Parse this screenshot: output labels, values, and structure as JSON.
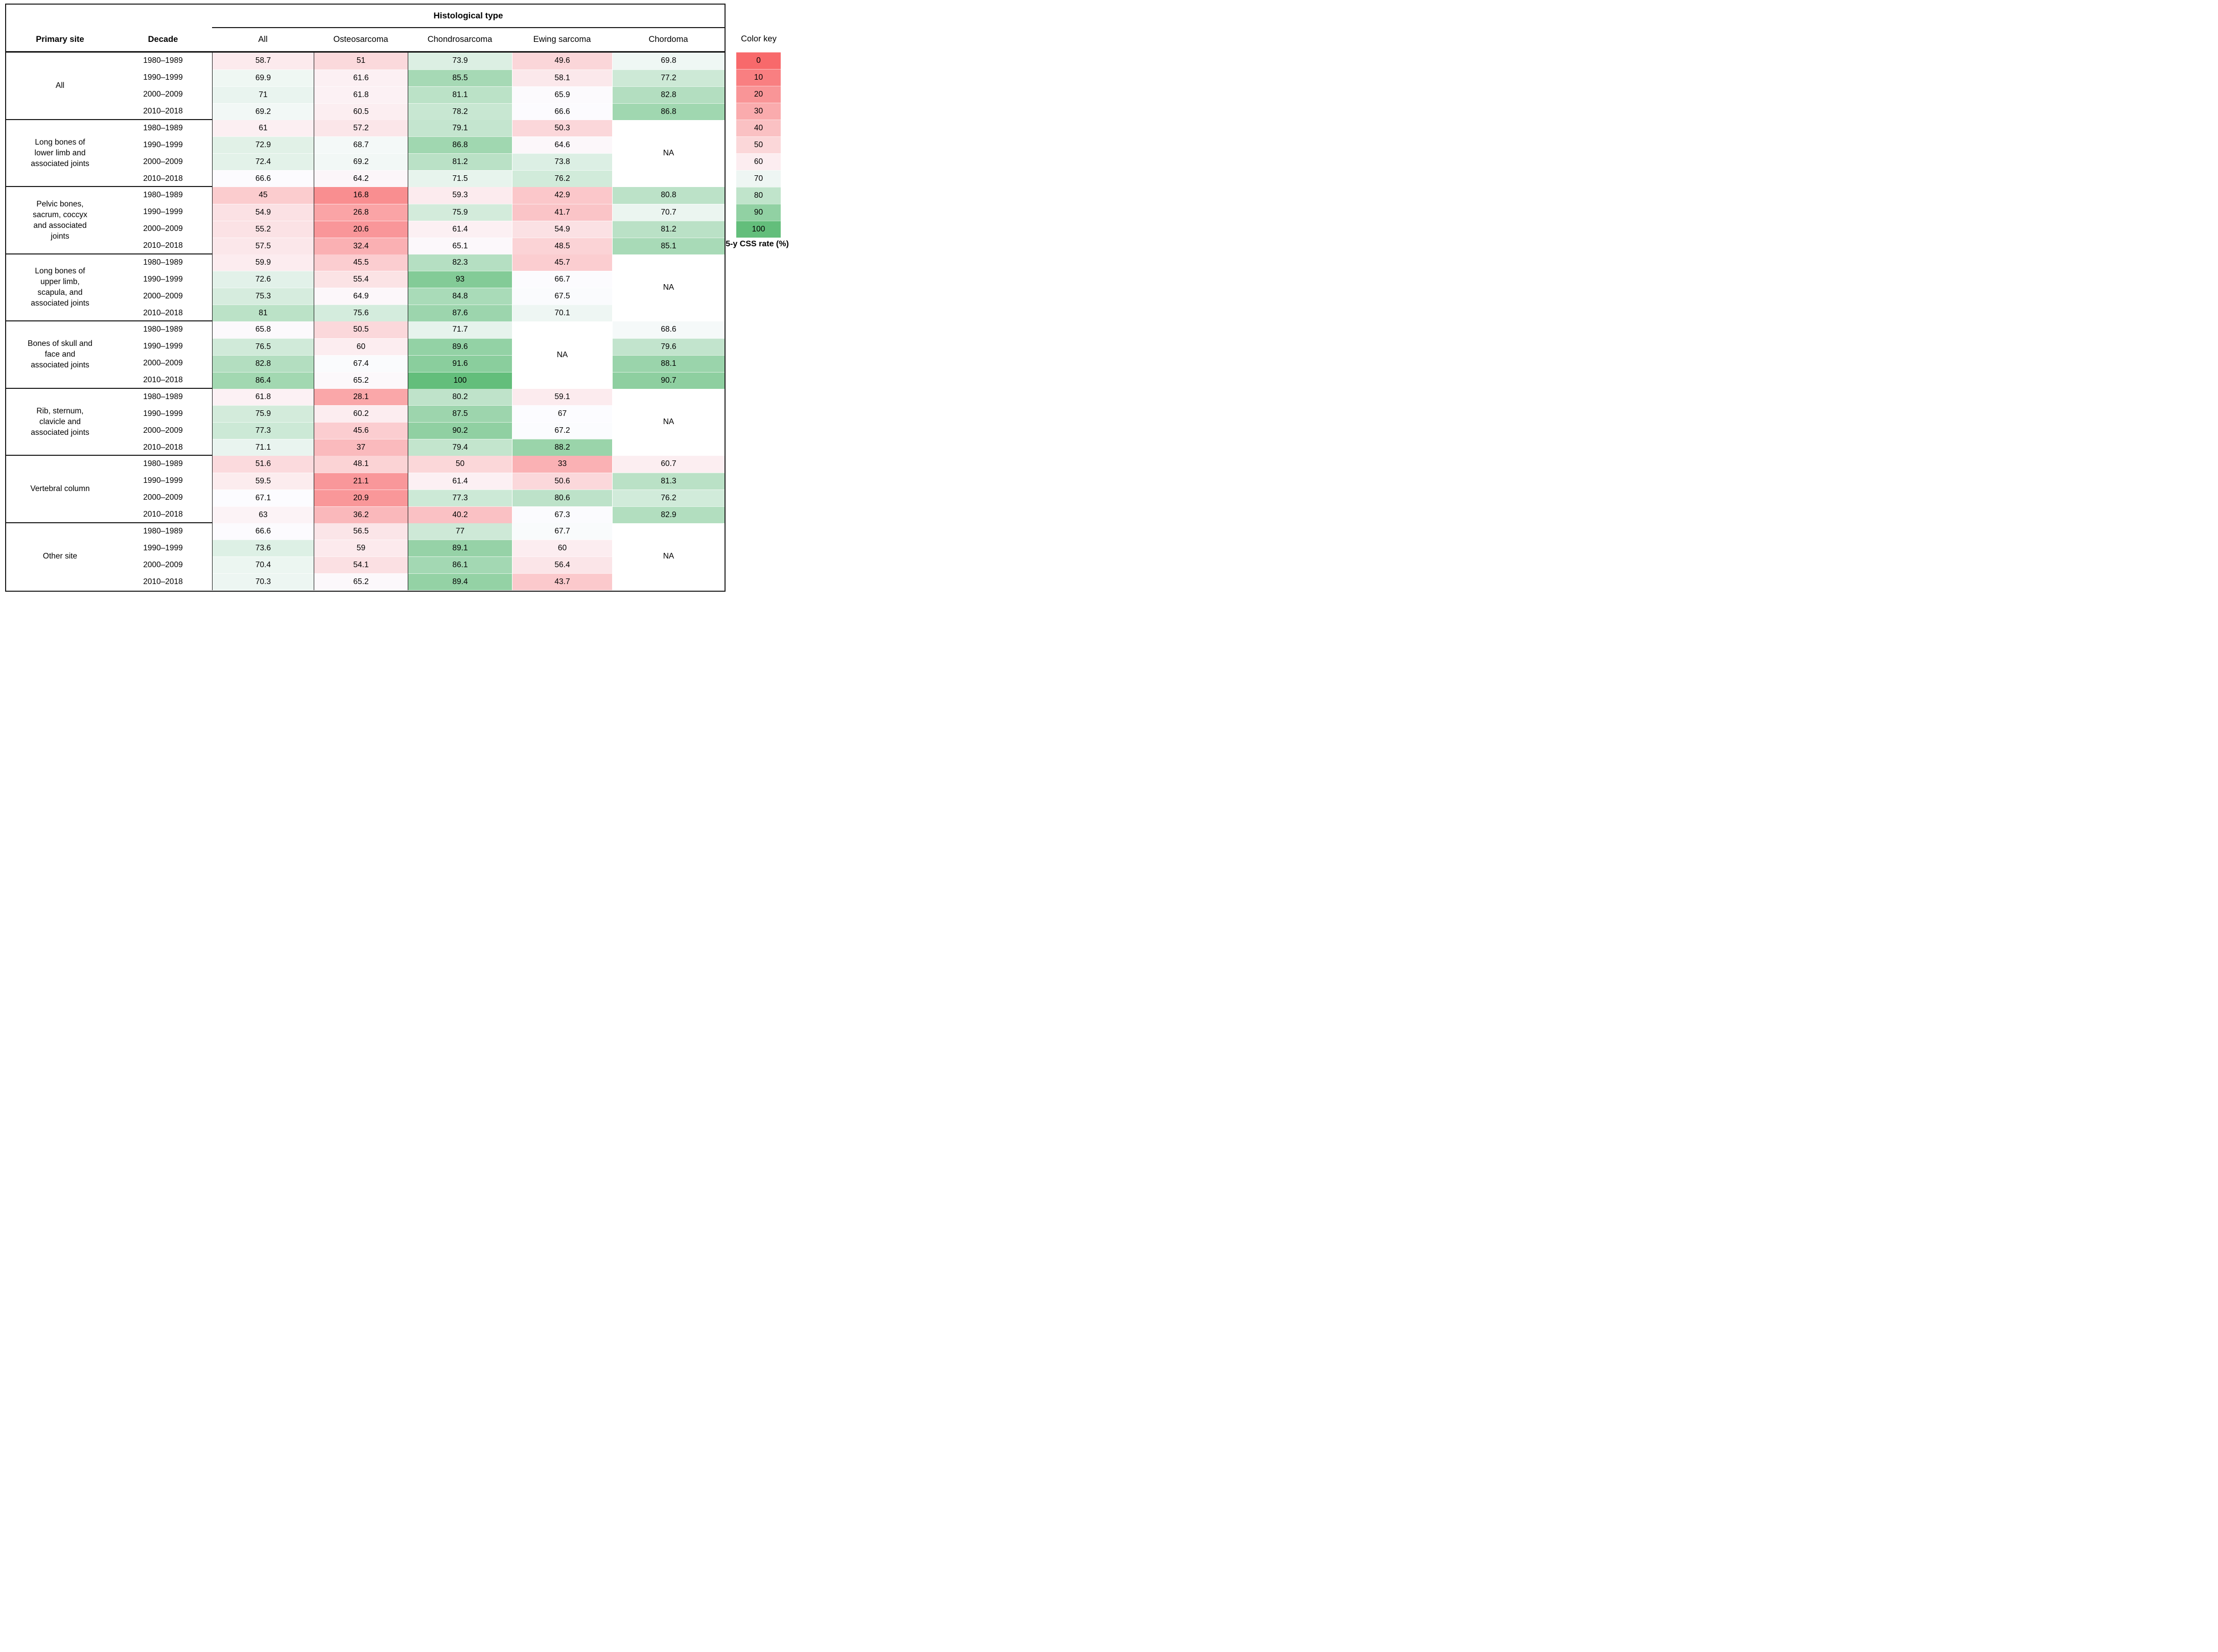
{
  "header": {
    "histological_type_label": "Histological type",
    "primary_site_label": "Primary site",
    "decade_label": "Decade"
  },
  "color_key": {
    "title": "Color key",
    "values": [
      0,
      10,
      20,
      30,
      40,
      50,
      60,
      70,
      80,
      90,
      100
    ],
    "caption": "5-y CSS rate (%)"
  },
  "chart_data": {
    "type": "heatmap",
    "title": "Histological type",
    "value_label": "5-y CSS rate (%)",
    "columns": [
      "All",
      "Osteosarcoma",
      "Chondrosarcoma",
      "Ewing sarcoma",
      "Chordoma"
    ],
    "decades": [
      "1980–1989",
      "1990–1999",
      "2000–2009",
      "2010–2018"
    ],
    "na_label": "NA",
    "color_scale": {
      "min": 0,
      "mid": 67,
      "max": 100,
      "min_color": "#F8696B",
      "mid_color": "#FCFCFF",
      "max_color": "#63BE7B"
    },
    "groups": [
      {
        "site": "All",
        "values": {
          "all": [
            58.7,
            69.9,
            71,
            69.2
          ],
          "osteosarcoma": [
            51,
            61.6,
            61.8,
            60.5
          ],
          "chondrosarcoma": [
            73.9,
            85.5,
            81.1,
            78.2
          ],
          "ewing_sarcoma": [
            49.6,
            58.1,
            65.9,
            66.6
          ],
          "chordoma": [
            69.8,
            77.2,
            82.8,
            86.8
          ]
        }
      },
      {
        "site": "Long bones of\nlower limb and\nassociated joints",
        "values": {
          "all": [
            61,
            72.9,
            72.4,
            66.6
          ],
          "osteosarcoma": [
            57.2,
            68.7,
            69.2,
            64.2
          ],
          "chondrosarcoma": [
            79.1,
            86.8,
            81.2,
            71.5
          ],
          "ewing_sarcoma": [
            50.3,
            64.6,
            73.8,
            76.2
          ],
          "chordoma": null
        }
      },
      {
        "site": "Pelvic bones,\nsacrum, coccyx\nand associated\njoints",
        "values": {
          "all": [
            45,
            54.9,
            55.2,
            57.5
          ],
          "osteosarcoma": [
            16.8,
            26.8,
            20.6,
            32.4
          ],
          "chondrosarcoma": [
            59.3,
            75.9,
            61.4,
            65.1
          ],
          "ewing_sarcoma": [
            42.9,
            41.7,
            54.9,
            48.5
          ],
          "chordoma": [
            80.8,
            70.7,
            81.2,
            85.1
          ]
        }
      },
      {
        "site": "Long bones of\nupper limb,\nscapula, and\nassociated joints",
        "values": {
          "all": [
            59.9,
            72.6,
            75.3,
            81
          ],
          "osteosarcoma": [
            45.5,
            55.4,
            64.9,
            75.6
          ],
          "chondrosarcoma": [
            82.3,
            93,
            84.8,
            87.6
          ],
          "ewing_sarcoma": [
            45.7,
            66.7,
            67.5,
            70.1
          ],
          "chordoma": null
        }
      },
      {
        "site": "Bones of skull and\nface and\nassociated joints",
        "values": {
          "all": [
            65.8,
            76.5,
            82.8,
            86.4
          ],
          "osteosarcoma": [
            50.5,
            60,
            67.4,
            65.2
          ],
          "chondrosarcoma": [
            71.7,
            89.6,
            91.6,
            100
          ],
          "ewing_sarcoma": null,
          "chordoma": [
            68.6,
            79.6,
            88.1,
            90.7
          ]
        }
      },
      {
        "site": "Rib, sternum,\nclavicle and\nassociated joints",
        "values": {
          "all": [
            61.8,
            75.9,
            77.3,
            71.1
          ],
          "osteosarcoma": [
            28.1,
            60.2,
            45.6,
            37
          ],
          "chondrosarcoma": [
            80.2,
            87.5,
            90.2,
            79.4
          ],
          "ewing_sarcoma": [
            59.1,
            67,
            67.2,
            88.2
          ],
          "chordoma": null
        }
      },
      {
        "site": "Vertebral column",
        "values": {
          "all": [
            51.6,
            59.5,
            67.1,
            63
          ],
          "osteosarcoma": [
            48.1,
            21.1,
            20.9,
            36.2
          ],
          "chondrosarcoma": [
            50,
            61.4,
            77.3,
            40.2
          ],
          "ewing_sarcoma": [
            33,
            50.6,
            80.6,
            67.3
          ],
          "chordoma": [
            60.7,
            81.3,
            76.2,
            82.9
          ]
        }
      },
      {
        "site": "Other site",
        "values": {
          "all": [
            66.6,
            73.6,
            70.4,
            70.3
          ],
          "osteosarcoma": [
            56.5,
            59,
            54.1,
            65.2
          ],
          "chondrosarcoma": [
            77,
            89.1,
            86.1,
            89.4
          ],
          "ewing_sarcoma": [
            67.7,
            60,
            56.4,
            43.7
          ],
          "chordoma": null
        }
      }
    ]
  }
}
